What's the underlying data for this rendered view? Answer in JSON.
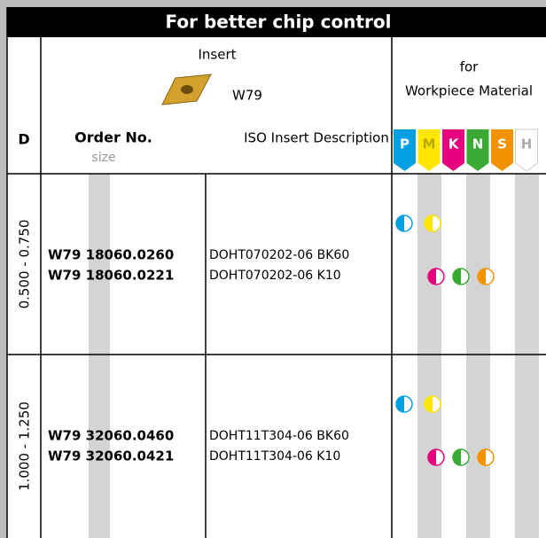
{
  "title": "For better chip control",
  "insert": {
    "label": "Insert",
    "code": "W79"
  },
  "material_header": [
    "for",
    "Workpiece Material"
  ],
  "columns": {
    "d": "D",
    "order": "Order No.",
    "size": "size",
    "description": "ISO Insert Description"
  },
  "materials": [
    "P",
    "M",
    "K",
    "N",
    "S",
    "H"
  ],
  "rows": [
    {
      "d": "0.500 - 0.750",
      "items": [
        {
          "order": "W79 18060.0260",
          "description": "DOHT070202-06 BK60"
        },
        {
          "order": "W79 18060.0221",
          "description": "DOHT070202-06 K10"
        }
      ]
    },
    {
      "d": "1.000 - 1.250",
      "items": [
        {
          "order": "W79 32060.0460",
          "description": "DOHT11T304-06 BK60"
        },
        {
          "order": "W79 32060.0421",
          "description": "DOHT11T304-06 K10"
        }
      ]
    }
  ]
}
